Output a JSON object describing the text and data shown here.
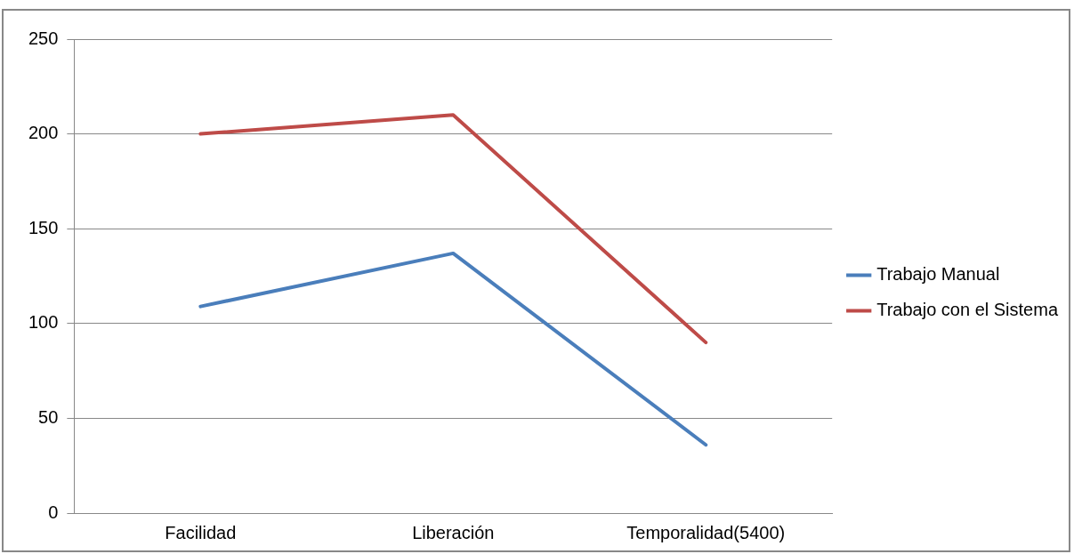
{
  "chart_data": {
    "type": "line",
    "categories": [
      "Facilidad",
      "Liberación",
      "Temporalidad(5400)"
    ],
    "series": [
      {
        "name": "Trabajo Manual",
        "color": "#4a7ebb",
        "values": [
          109,
          137,
          36
        ]
      },
      {
        "name": "Trabajo con el Sistema",
        "color": "#be4b48",
        "values": [
          200,
          210,
          90
        ]
      }
    ],
    "ylim": [
      0,
      250
    ],
    "yticks": [
      0,
      50,
      100,
      150,
      200,
      250
    ],
    "grid": "y",
    "legend": "right",
    "marker": "none",
    "line_style": "solid"
  }
}
